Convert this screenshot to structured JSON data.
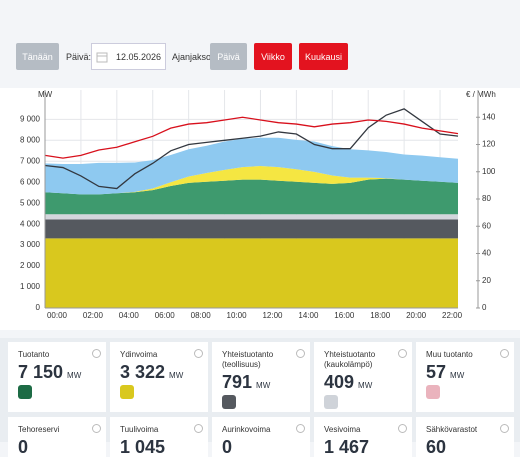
{
  "controls": {
    "today": "Tänään",
    "day_label": "Päivä:",
    "date": "12.05.2026",
    "period_label": "Ajanjakso:",
    "periods": [
      "Päivä",
      "Viikko",
      "Kuukausi"
    ]
  },
  "chart_data": {
    "type": "area",
    "stacked": true,
    "y_label": "MW",
    "y2_label": "€ / MWh",
    "grid": true,
    "categories": [
      "00:00",
      null,
      "02:00",
      null,
      "04:00",
      null,
      "06:00",
      null,
      "08:00",
      null,
      "10:00",
      null,
      "12:00",
      null,
      "14:00",
      null,
      "16:00",
      null,
      "18:00",
      null,
      "20:00",
      null,
      "22:00",
      null
    ],
    "ylim": [
      0,
      10400
    ],
    "yticks": [
      0,
      {
        "value": 1000,
        "label": "1 000"
      },
      {
        "value": 2000,
        "label": "2 000"
      },
      {
        "value": 3000,
        "label": "3 000"
      },
      {
        "value": 4000,
        "label": "4 000"
      },
      {
        "value": 5000,
        "label": "5 000"
      },
      {
        "value": 6000,
        "label": "6 000"
      },
      {
        "value": 7000,
        "label": "7 000"
      },
      {
        "value": 8000,
        "label": "8 000"
      },
      {
        "value": 9000,
        "label": "9 000"
      }
    ],
    "y2lim": [
      0,
      160
    ],
    "y2ticks": [
      0,
      20,
      40,
      60,
      80,
      100,
      120,
      140
    ],
    "series": [
      {
        "color": "#d9c81e",
        "values": [
          3322,
          3322,
          3322,
          3322,
          3322,
          3322,
          3322,
          3322,
          3322,
          3322,
          3322,
          3322,
          3322,
          3322,
          3322,
          3322,
          3322,
          3322,
          3322,
          3322,
          3322,
          3322,
          3322,
          3322
        ]
      },
      {
        "color": "#55595f",
        "values": [
          900,
          900,
          900,
          900,
          900,
          900,
          900,
          900,
          900,
          900,
          900,
          900,
          900,
          900,
          900,
          900,
          900,
          900,
          900,
          900,
          900,
          900,
          900,
          900
        ]
      },
      {
        "color": "#d3d6dc",
        "values": [
          250,
          250,
          250,
          250,
          250,
          250,
          250,
          250,
          250,
          250,
          250,
          250,
          250,
          250,
          250,
          250,
          250,
          250,
          250,
          250,
          250,
          250,
          250,
          250
        ]
      },
      {
        "color": "#3e9a6e",
        "values": [
          1050,
          1000,
          950,
          950,
          1000,
          1050,
          1150,
          1350,
          1500,
          1550,
          1600,
          1650,
          1650,
          1600,
          1550,
          1500,
          1450,
          1500,
          1650,
          1700,
          1650,
          1600,
          1550,
          1500
        ]
      },
      {
        "color": "#f5e642",
        "values": [
          0,
          0,
          0,
          0,
          0,
          20,
          80,
          180,
          300,
          420,
          520,
          600,
          650,
          650,
          600,
          520,
          400,
          250,
          100,
          20,
          0,
          0,
          0,
          0
        ]
      },
      {
        "color": "#8ec9f0",
        "values": [
          1380,
          1400,
          1450,
          1500,
          1450,
          1400,
          1350,
          1300,
          1300,
          1300,
          1350,
          1350,
          1350,
          1400,
          1400,
          1450,
          1400,
          1350,
          1300,
          1250,
          1200,
          1200,
          1170,
          1150
        ]
      },
      {
        "type": "line",
        "color": "#333840",
        "values": [
          6800,
          6700,
          6300,
          5800,
          5700,
          6400,
          6900,
          7500,
          7800,
          7900,
          8000,
          8100,
          8200,
          8400,
          8300,
          7800,
          7600,
          7600,
          8600,
          9200,
          9500,
          8900,
          8300,
          8200
        ]
      },
      {
        "type": "line",
        "axis": "y2",
        "color": "#d8101c",
        "values": [
          112,
          110,
          112,
          116,
          118,
          122,
          126,
          132,
          135,
          136,
          138,
          140,
          138,
          136,
          135,
          133,
          135,
          136,
          138,
          137,
          135,
          132,
          130,
          128
        ]
      }
    ]
  },
  "cards": [
    {
      "title": "Tuotanto",
      "value": "7 150",
      "unit": "MW",
      "icon_color": "#1d6b45"
    },
    {
      "title": "Ydinvoima",
      "value": "3 322",
      "unit": "MW",
      "icon_color": "#d9c81e"
    },
    {
      "title": "Yhteistuotanto (teollisuus)",
      "value": "791",
      "unit": "MW",
      "icon_color": "#55595f"
    },
    {
      "title": "Yhteistuotanto (kaukolämpö)",
      "value": "409",
      "unit": "MW",
      "icon_color": "#cfd3d9"
    },
    {
      "title": "Muu tuotanto",
      "value": "57",
      "unit": "MW",
      "icon_color": "#eab3bd"
    },
    {
      "title": "Tehoreservi",
      "value": "0"
    },
    {
      "title": "Tuulivoima",
      "value": "1 045"
    },
    {
      "title": "Aurinkovoima",
      "value": "0"
    },
    {
      "title": "Vesivoima",
      "value": "1 467"
    },
    {
      "title": "Sähkövarastot",
      "value": "60"
    }
  ]
}
